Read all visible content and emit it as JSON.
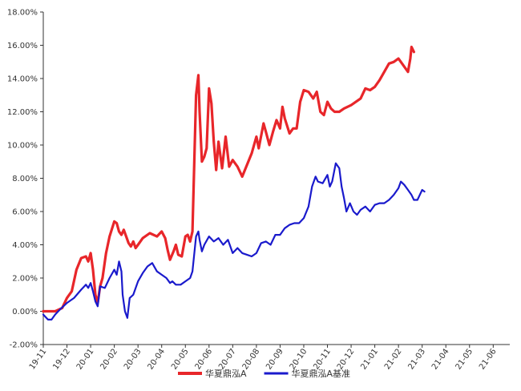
{
  "chart_data": {
    "type": "line",
    "x_ticks": [
      "19-11",
      "19-12",
      "20-01",
      "20-02",
      "20-03",
      "20-04",
      "20-05",
      "20-06",
      "20-07",
      "20-08",
      "20-09",
      "20-10",
      "20-11",
      "20-12",
      "21-01",
      "21-02",
      "21-03",
      "21-04",
      "21-05",
      "21-06"
    ],
    "y_ticks": [
      "-2.00%",
      "0.00%",
      "2.00%",
      "4.00%",
      "6.00%",
      "8.00%",
      "10.00%",
      "12.00%",
      "14.00%",
      "16.00%",
      "18.00%"
    ],
    "ylim": [
      -2,
      18
    ],
    "grid": false,
    "legend_position": "bottom",
    "series": [
      {
        "name": "华夏鼎泓A",
        "color": "#e8262a",
        "points": [
          [
            0.0,
            0.0
          ],
          [
            0.5,
            0.0
          ],
          [
            0.8,
            0.2
          ],
          [
            1.0,
            0.8
          ],
          [
            1.2,
            1.2
          ],
          [
            1.4,
            2.5
          ],
          [
            1.6,
            3.2
          ],
          [
            1.8,
            3.3
          ],
          [
            1.9,
            3.0
          ],
          [
            2.0,
            3.5
          ],
          [
            2.1,
            2.5
          ],
          [
            2.2,
            1.0
          ],
          [
            2.3,
            0.5
          ],
          [
            2.4,
            1.5
          ],
          [
            2.5,
            2.0
          ],
          [
            2.65,
            3.5
          ],
          [
            2.8,
            4.5
          ],
          [
            3.0,
            5.4
          ],
          [
            3.1,
            5.3
          ],
          [
            3.2,
            4.8
          ],
          [
            3.3,
            4.6
          ],
          [
            3.4,
            4.9
          ],
          [
            3.5,
            4.5
          ],
          [
            3.6,
            4.1
          ],
          [
            3.7,
            3.9
          ],
          [
            3.8,
            4.2
          ],
          [
            3.9,
            3.8
          ],
          [
            4.0,
            4.0
          ],
          [
            4.2,
            4.4
          ],
          [
            4.5,
            4.7
          ],
          [
            4.8,
            4.5
          ],
          [
            5.0,
            4.8
          ],
          [
            5.15,
            4.4
          ],
          [
            5.25,
            3.7
          ],
          [
            5.35,
            3.1
          ],
          [
            5.5,
            3.6
          ],
          [
            5.6,
            4.0
          ],
          [
            5.7,
            3.4
          ],
          [
            5.85,
            3.3
          ],
          [
            6.0,
            4.5
          ],
          [
            6.1,
            4.6
          ],
          [
            6.2,
            4.2
          ],
          [
            6.3,
            4.8
          ],
          [
            6.45,
            13.0
          ],
          [
            6.55,
            14.2
          ],
          [
            6.6,
            12.0
          ],
          [
            6.7,
            9.0
          ],
          [
            6.8,
            9.3
          ],
          [
            6.9,
            9.8
          ],
          [
            7.0,
            13.4
          ],
          [
            7.1,
            12.5
          ],
          [
            7.2,
            10.2
          ],
          [
            7.3,
            8.5
          ],
          [
            7.4,
            10.2
          ],
          [
            7.55,
            8.6
          ],
          [
            7.7,
            10.5
          ],
          [
            7.85,
            8.7
          ],
          [
            8.0,
            9.1
          ],
          [
            8.2,
            8.7
          ],
          [
            8.4,
            8.1
          ],
          [
            8.6,
            8.8
          ],
          [
            8.8,
            9.5
          ],
          [
            9.0,
            10.5
          ],
          [
            9.1,
            9.8
          ],
          [
            9.3,
            11.3
          ],
          [
            9.4,
            10.8
          ],
          [
            9.55,
            10.0
          ],
          [
            9.7,
            10.8
          ],
          [
            9.85,
            11.5
          ],
          [
            10.0,
            11.0
          ],
          [
            10.1,
            12.3
          ],
          [
            10.2,
            11.6
          ],
          [
            10.4,
            10.7
          ],
          [
            10.55,
            11.0
          ],
          [
            10.7,
            11.0
          ],
          [
            10.85,
            12.6
          ],
          [
            11.0,
            13.3
          ],
          [
            11.2,
            13.2
          ],
          [
            11.4,
            12.8
          ],
          [
            11.55,
            13.2
          ],
          [
            11.7,
            12.0
          ],
          [
            11.85,
            11.8
          ],
          [
            12.0,
            12.6
          ],
          [
            12.15,
            12.2
          ],
          [
            12.3,
            12.0
          ],
          [
            12.5,
            12.0
          ],
          [
            12.7,
            12.2
          ],
          [
            13.0,
            12.4
          ],
          [
            13.2,
            12.6
          ],
          [
            13.4,
            12.8
          ],
          [
            13.6,
            13.4
          ],
          [
            13.8,
            13.3
          ],
          [
            14.0,
            13.5
          ],
          [
            14.2,
            13.9
          ],
          [
            14.4,
            14.4
          ],
          [
            14.6,
            14.9
          ],
          [
            14.8,
            15.0
          ],
          [
            15.0,
            15.2
          ],
          [
            15.2,
            14.8
          ],
          [
            15.4,
            14.4
          ],
          [
            15.5,
            15.2
          ],
          [
            15.55,
            15.9
          ],
          [
            15.65,
            15.6
          ]
        ]
      },
      {
        "name": "华夏鼎泓A基准",
        "color": "#1a1acc",
        "points": [
          [
            0.0,
            -0.2
          ],
          [
            0.2,
            -0.5
          ],
          [
            0.35,
            -0.5
          ],
          [
            0.5,
            -0.2
          ],
          [
            0.7,
            0.1
          ],
          [
            1.0,
            0.5
          ],
          [
            1.3,
            0.8
          ],
          [
            1.6,
            1.3
          ],
          [
            1.8,
            1.6
          ],
          [
            1.9,
            1.4
          ],
          [
            2.0,
            1.7
          ],
          [
            2.1,
            1.2
          ],
          [
            2.2,
            0.6
          ],
          [
            2.3,
            0.3
          ],
          [
            2.4,
            1.5
          ],
          [
            2.6,
            1.4
          ],
          [
            2.8,
            2.0
          ],
          [
            3.0,
            2.5
          ],
          [
            3.1,
            2.2
          ],
          [
            3.2,
            3.0
          ],
          [
            3.3,
            2.4
          ],
          [
            3.35,
            1.0
          ],
          [
            3.45,
            0.0
          ],
          [
            3.55,
            -0.4
          ],
          [
            3.65,
            0.8
          ],
          [
            3.8,
            1.0
          ],
          [
            4.0,
            1.8
          ],
          [
            4.2,
            2.3
          ],
          [
            4.4,
            2.7
          ],
          [
            4.6,
            2.9
          ],
          [
            4.8,
            2.4
          ],
          [
            5.0,
            2.2
          ],
          [
            5.2,
            2.0
          ],
          [
            5.35,
            1.7
          ],
          [
            5.45,
            1.8
          ],
          [
            5.6,
            1.6
          ],
          [
            5.8,
            1.6
          ],
          [
            6.0,
            1.8
          ],
          [
            6.2,
            2.0
          ],
          [
            6.3,
            2.4
          ],
          [
            6.45,
            4.5
          ],
          [
            6.55,
            4.8
          ],
          [
            6.6,
            4.3
          ],
          [
            6.7,
            3.6
          ],
          [
            6.8,
            4.0
          ],
          [
            7.0,
            4.5
          ],
          [
            7.2,
            4.2
          ],
          [
            7.4,
            4.4
          ],
          [
            7.6,
            4.0
          ],
          [
            7.8,
            4.3
          ],
          [
            8.0,
            3.5
          ],
          [
            8.2,
            3.8
          ],
          [
            8.4,
            3.5
          ],
          [
            8.6,
            3.4
          ],
          [
            8.8,
            3.3
          ],
          [
            9.0,
            3.5
          ],
          [
            9.2,
            4.1
          ],
          [
            9.4,
            4.2
          ],
          [
            9.6,
            4.0
          ],
          [
            9.8,
            4.6
          ],
          [
            10.0,
            4.6
          ],
          [
            10.2,
            5.0
          ],
          [
            10.4,
            5.2
          ],
          [
            10.6,
            5.3
          ],
          [
            10.8,
            5.3
          ],
          [
            11.0,
            5.6
          ],
          [
            11.2,
            6.3
          ],
          [
            11.35,
            7.5
          ],
          [
            11.5,
            8.1
          ],
          [
            11.6,
            7.8
          ],
          [
            11.8,
            7.7
          ],
          [
            12.0,
            8.2
          ],
          [
            12.1,
            7.5
          ],
          [
            12.2,
            7.8
          ],
          [
            12.35,
            8.9
          ],
          [
            12.5,
            8.6
          ],
          [
            12.6,
            7.5
          ],
          [
            12.7,
            6.8
          ],
          [
            12.8,
            6.0
          ],
          [
            12.95,
            6.5
          ],
          [
            13.1,
            6.0
          ],
          [
            13.25,
            5.8
          ],
          [
            13.4,
            6.1
          ],
          [
            13.6,
            6.3
          ],
          [
            13.8,
            6.0
          ],
          [
            14.0,
            6.4
          ],
          [
            14.2,
            6.5
          ],
          [
            14.4,
            6.5
          ],
          [
            14.6,
            6.7
          ],
          [
            14.8,
            7.0
          ],
          [
            15.0,
            7.4
          ],
          [
            15.1,
            7.8
          ],
          [
            15.25,
            7.6
          ],
          [
            15.4,
            7.3
          ],
          [
            15.55,
            7.0
          ],
          [
            15.65,
            6.7
          ],
          [
            15.8,
            6.7
          ],
          [
            15.9,
            7.0
          ],
          [
            16.0,
            7.3
          ],
          [
            16.1,
            7.2
          ]
        ]
      }
    ]
  }
}
